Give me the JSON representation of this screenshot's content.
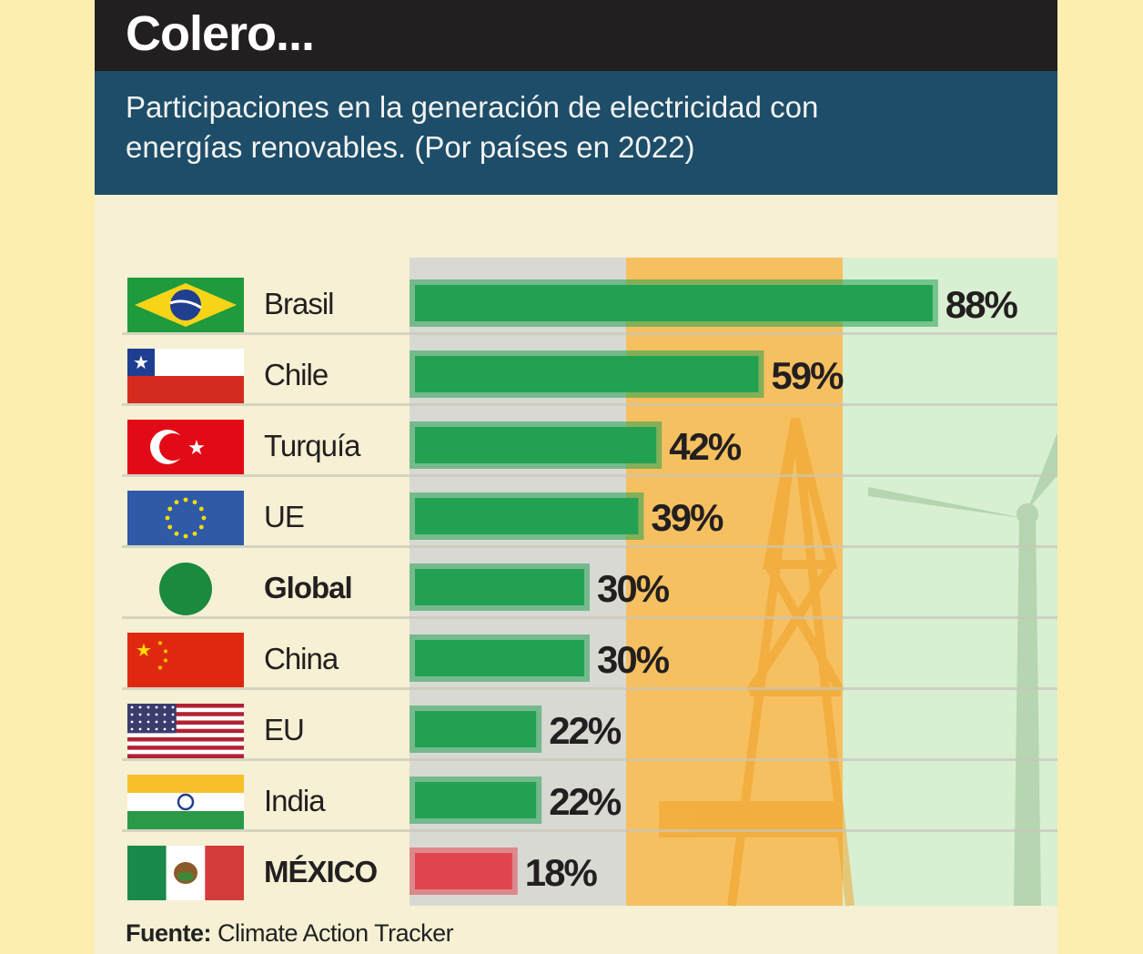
{
  "header": {
    "title": "Colero...",
    "subtitle": "Participaciones en la generación de electricidad con energías renovables. (Por países en 2022)"
  },
  "source": {
    "label": "Fuente:",
    "text": "Climate Action Tracker"
  },
  "colors": {
    "bar_green": "#22a152",
    "bar_red": "#e0454f",
    "band_gray": "#d9d9d4",
    "band_orange": "#f6c061",
    "band_green": "#d8efd2",
    "title_bg": "#231f20",
    "subtitle_bg": "#1d4d68"
  },
  "chart_data": {
    "type": "bar",
    "orientation": "horizontal",
    "categories": [
      "Brasil",
      "Chile",
      "Turquía",
      "UE",
      "Global",
      "China",
      "EU",
      "India",
      "MÉXICO"
    ],
    "values": [
      88,
      59,
      42,
      39,
      30,
      30,
      22,
      22,
      18
    ],
    "value_labels": [
      "88%",
      "59%",
      "42%",
      "39%",
      "30%",
      "30%",
      "22%",
      "22%",
      "18%"
    ],
    "flags": [
      "brazil-flag-icon",
      "chile-flag-icon",
      "turkey-flag-icon",
      "eu-flag-icon",
      "global-circle-icon",
      "china-flag-icon",
      "usa-flag-icon",
      "india-flag-icon",
      "mexico-flag-icon"
    ],
    "bold": [
      false,
      false,
      false,
      false,
      true,
      false,
      false,
      false,
      true
    ],
    "highlight": [
      false,
      false,
      false,
      false,
      false,
      false,
      false,
      false,
      true
    ],
    "xlim": [
      0,
      100
    ],
    "unit": "%",
    "title": "Colero...",
    "subtitle": "Participaciones en la generación de electricidad con energías renovables. (Por países en 2022)"
  }
}
